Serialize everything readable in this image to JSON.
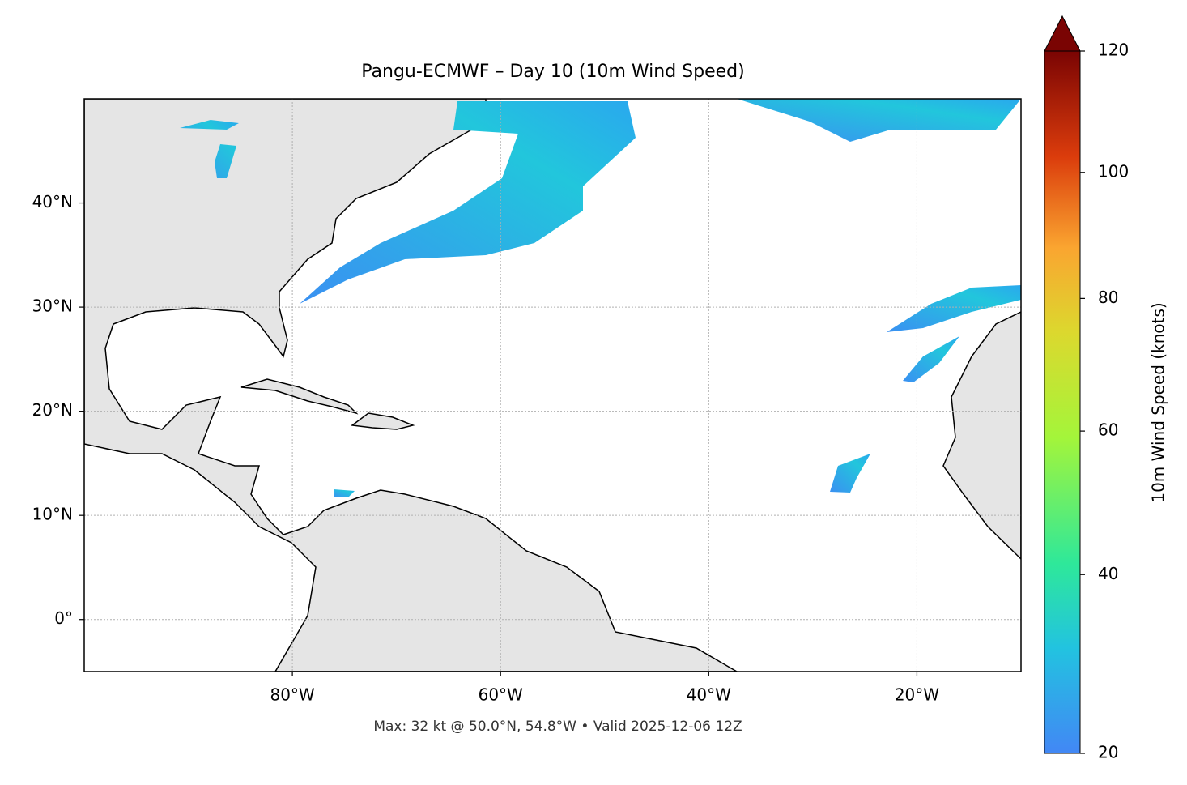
{
  "chart_data": {
    "type": "map",
    "title": "Pangu-ECMWF – Day 10 (10m Wind Speed)",
    "footer": "Max: 32 kt @ 50.0°N, 54.8°W • Valid 2025-12-06 12Z",
    "xlim": [
      -100,
      -10
    ],
    "ylim": [
      -5,
      50
    ],
    "xticks": [
      {
        "value": -80,
        "label": "80°W"
      },
      {
        "value": -60,
        "label": "60°W"
      },
      {
        "value": -40,
        "label": "40°W"
      },
      {
        "value": -20,
        "label": "20°W"
      }
    ],
    "yticks": [
      {
        "value": 0,
        "label": "0°"
      },
      {
        "value": 10,
        "label": "10°N"
      },
      {
        "value": 20,
        "label": "20°N"
      },
      {
        "value": 30,
        "label": "30°N"
      },
      {
        "value": 40,
        "label": "40°N"
      }
    ],
    "grid": true,
    "colorbar": {
      "label": "10m Wind Speed (knots)",
      "lim": [
        20,
        120
      ],
      "ticks": [
        20,
        40,
        60,
        80,
        100,
        120
      ],
      "gamma": 0.85,
      "extend": "max"
    }
  }
}
